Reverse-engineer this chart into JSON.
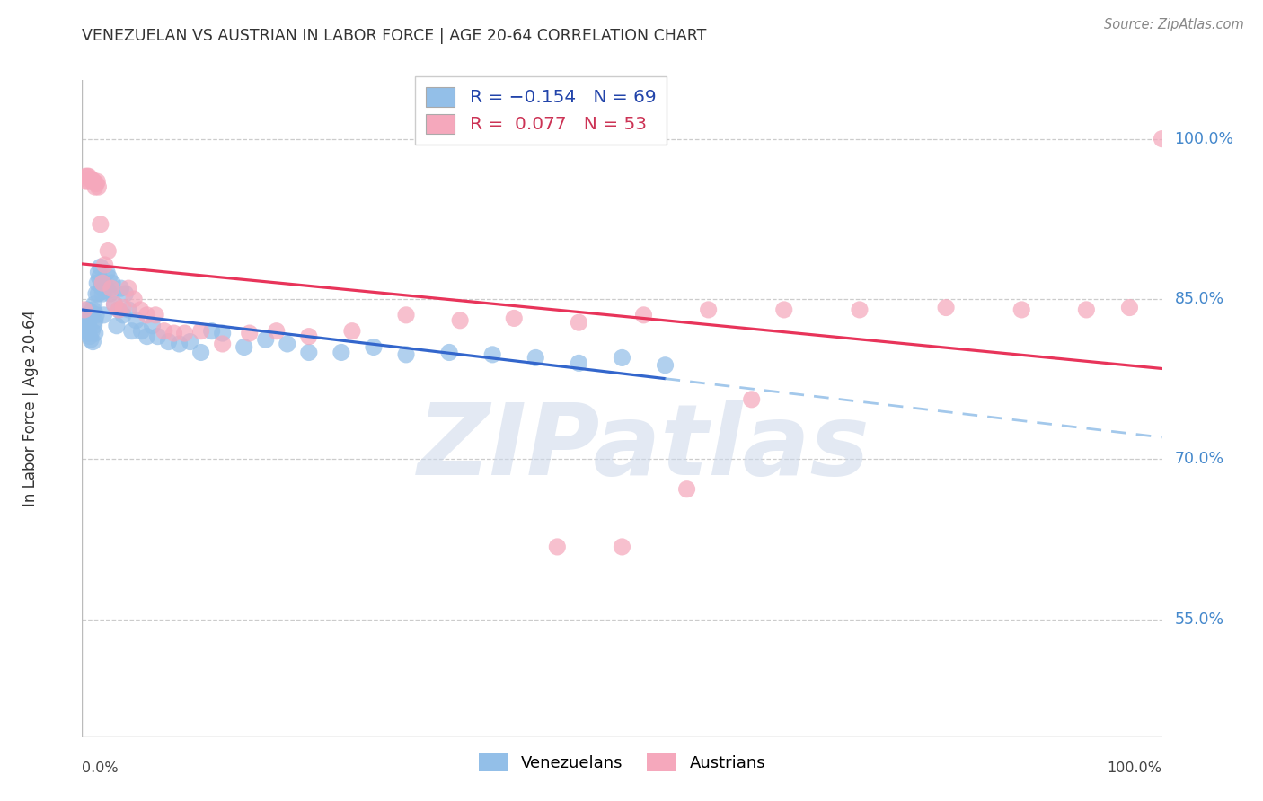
{
  "title": "VENEZUELAN VS AUSTRIAN IN LABOR FORCE | AGE 20-64 CORRELATION CHART",
  "source": "Source: ZipAtlas.com",
  "ylabel": "In Labor Force | Age 20-64",
  "y_ticks": [
    0.55,
    0.7,
    0.85,
    1.0
  ],
  "y_tick_labels": [
    "55.0%",
    "70.0%",
    "85.0%",
    "100.0%"
  ],
  "xlim": [
    0.0,
    1.0
  ],
  "ylim": [
    0.44,
    1.055
  ],
  "blue_color": "#93bfe8",
  "pink_color": "#f5a8bc",
  "trend_blue_solid": "#3366cc",
  "trend_blue_dash": "#93bfe8",
  "trend_pink_solid": "#e8345a",
  "watermark": "ZIPatlas",
  "watermark_color": "#ccd8ea",
  "venezuelan_x": [
    0.002,
    0.003,
    0.004,
    0.004,
    0.005,
    0.005,
    0.006,
    0.006,
    0.007,
    0.007,
    0.008,
    0.008,
    0.009,
    0.009,
    0.01,
    0.01,
    0.011,
    0.011,
    0.012,
    0.012,
    0.013,
    0.013,
    0.014,
    0.015,
    0.015,
    0.016,
    0.017,
    0.018,
    0.019,
    0.02,
    0.021,
    0.022,
    0.023,
    0.024,
    0.025,
    0.026,
    0.028,
    0.03,
    0.032,
    0.034,
    0.036,
    0.038,
    0.04,
    0.043,
    0.046,
    0.05,
    0.055,
    0.06,
    0.065,
    0.07,
    0.08,
    0.09,
    0.1,
    0.11,
    0.12,
    0.13,
    0.15,
    0.17,
    0.19,
    0.21,
    0.24,
    0.27,
    0.3,
    0.34,
    0.38,
    0.42,
    0.46,
    0.5,
    0.54
  ],
  "venezuelan_y": [
    0.82,
    0.83,
    0.825,
    0.835,
    0.822,
    0.84,
    0.818,
    0.828,
    0.815,
    0.832,
    0.812,
    0.838,
    0.82,
    0.835,
    0.81,
    0.84,
    0.825,
    0.845,
    0.818,
    0.83,
    0.855,
    0.835,
    0.865,
    0.875,
    0.855,
    0.87,
    0.88,
    0.862,
    0.855,
    0.835,
    0.858,
    0.862,
    0.875,
    0.858,
    0.87,
    0.855,
    0.865,
    0.845,
    0.825,
    0.84,
    0.86,
    0.835,
    0.855,
    0.84,
    0.82,
    0.83,
    0.82,
    0.815,
    0.825,
    0.815,
    0.81,
    0.808,
    0.81,
    0.8,
    0.82,
    0.818,
    0.805,
    0.812,
    0.808,
    0.8,
    0.8,
    0.805,
    0.798,
    0.8,
    0.798,
    0.795,
    0.79,
    0.795,
    0.788
  ],
  "austrian_x": [
    0.002,
    0.003,
    0.004,
    0.005,
    0.006,
    0.007,
    0.008,
    0.009,
    0.01,
    0.011,
    0.012,
    0.013,
    0.014,
    0.015,
    0.017,
    0.019,
    0.021,
    0.024,
    0.027,
    0.03,
    0.034,
    0.038,
    0.043,
    0.048,
    0.054,
    0.06,
    0.068,
    0.076,
    0.085,
    0.095,
    0.11,
    0.13,
    0.155,
    0.18,
    0.21,
    0.25,
    0.3,
    0.35,
    0.4,
    0.46,
    0.52,
    0.58,
    0.65,
    0.72,
    0.8,
    0.87,
    0.93,
    0.97,
    1.0,
    0.44,
    0.5,
    0.56,
    0.62
  ],
  "austrian_y": [
    0.84,
    0.965,
    0.96,
    0.965,
    0.965,
    0.96,
    0.962,
    0.962,
    0.96,
    0.96,
    0.955,
    0.958,
    0.96,
    0.955,
    0.92,
    0.865,
    0.882,
    0.895,
    0.86,
    0.845,
    0.84,
    0.842,
    0.86,
    0.85,
    0.84,
    0.835,
    0.835,
    0.82,
    0.818,
    0.818,
    0.82,
    0.808,
    0.818,
    0.82,
    0.815,
    0.82,
    0.835,
    0.83,
    0.832,
    0.828,
    0.835,
    0.84,
    0.84,
    0.84,
    0.842,
    0.84,
    0.84,
    0.842,
    1.0,
    0.618,
    0.618,
    0.672,
    0.756
  ]
}
